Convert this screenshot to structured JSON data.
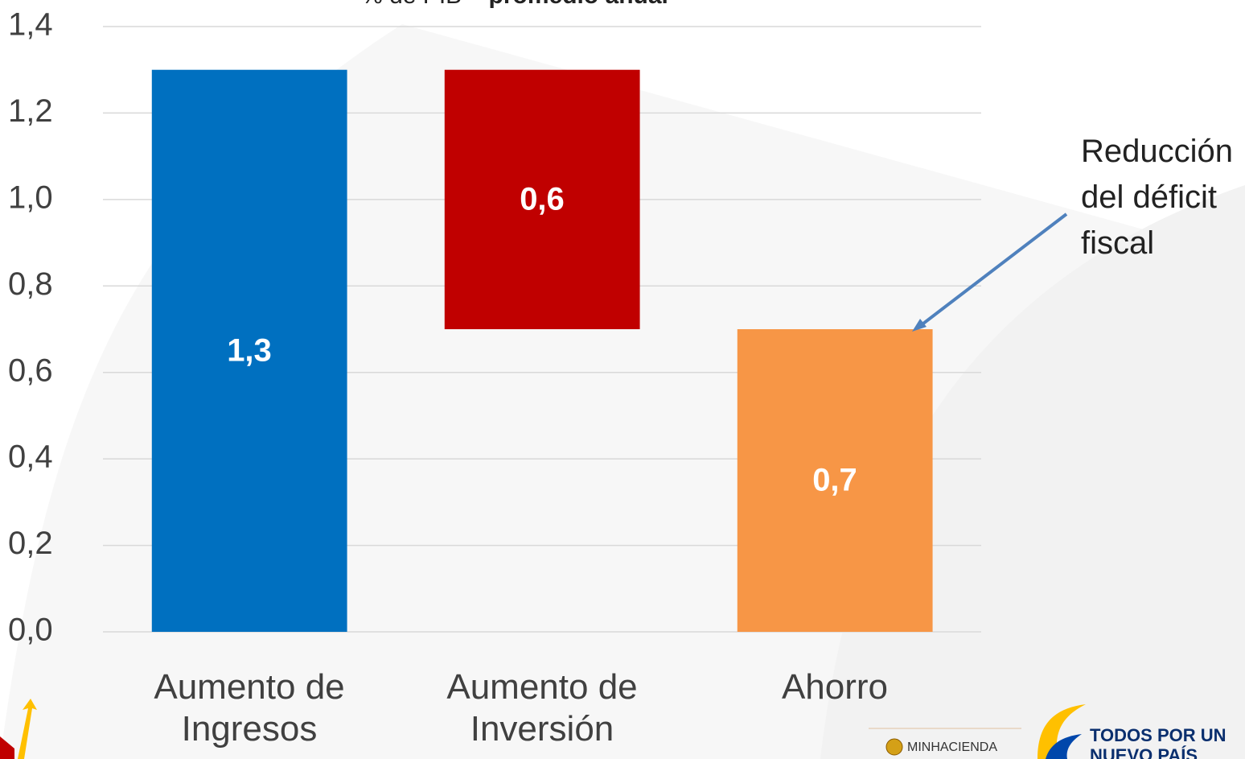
{
  "chart_data": {
    "type": "waterfall",
    "subtitle": [
      "% de PIB – ",
      "promedio anual"
    ],
    "categories": [
      "Aumento de Ingresos",
      "Aumento de Inversión",
      "Ahorro"
    ],
    "values": [
      1.3,
      0.6,
      0.7
    ],
    "value_labels": [
      "1,3",
      "0,6",
      "0,7"
    ],
    "colors": [
      "#0070c0",
      "#c00000",
      "#f79646"
    ],
    "ylim": [
      0,
      1.4
    ],
    "yticks": [
      {
        "value": 0,
        "label": "0,0"
      },
      {
        "value": 0.2,
        "label": "0,2"
      },
      {
        "value": 0.4,
        "label": "0,4"
      },
      {
        "value": 0.6,
        "label": "0,6"
      },
      {
        "value": 0.8,
        "label": "0,8"
      },
      {
        "value": 1.0,
        "label": "1,0"
      },
      {
        "value": 1.2,
        "label": "1,2"
      },
      {
        "value": 1.4,
        "label": "1,4"
      }
    ],
    "grid": true,
    "annotation": "Reducción del déficit fiscal"
  },
  "logos": [
    "MINHACIENDA",
    "TODOS POR UN",
    "NUEVO PAÍS"
  ]
}
